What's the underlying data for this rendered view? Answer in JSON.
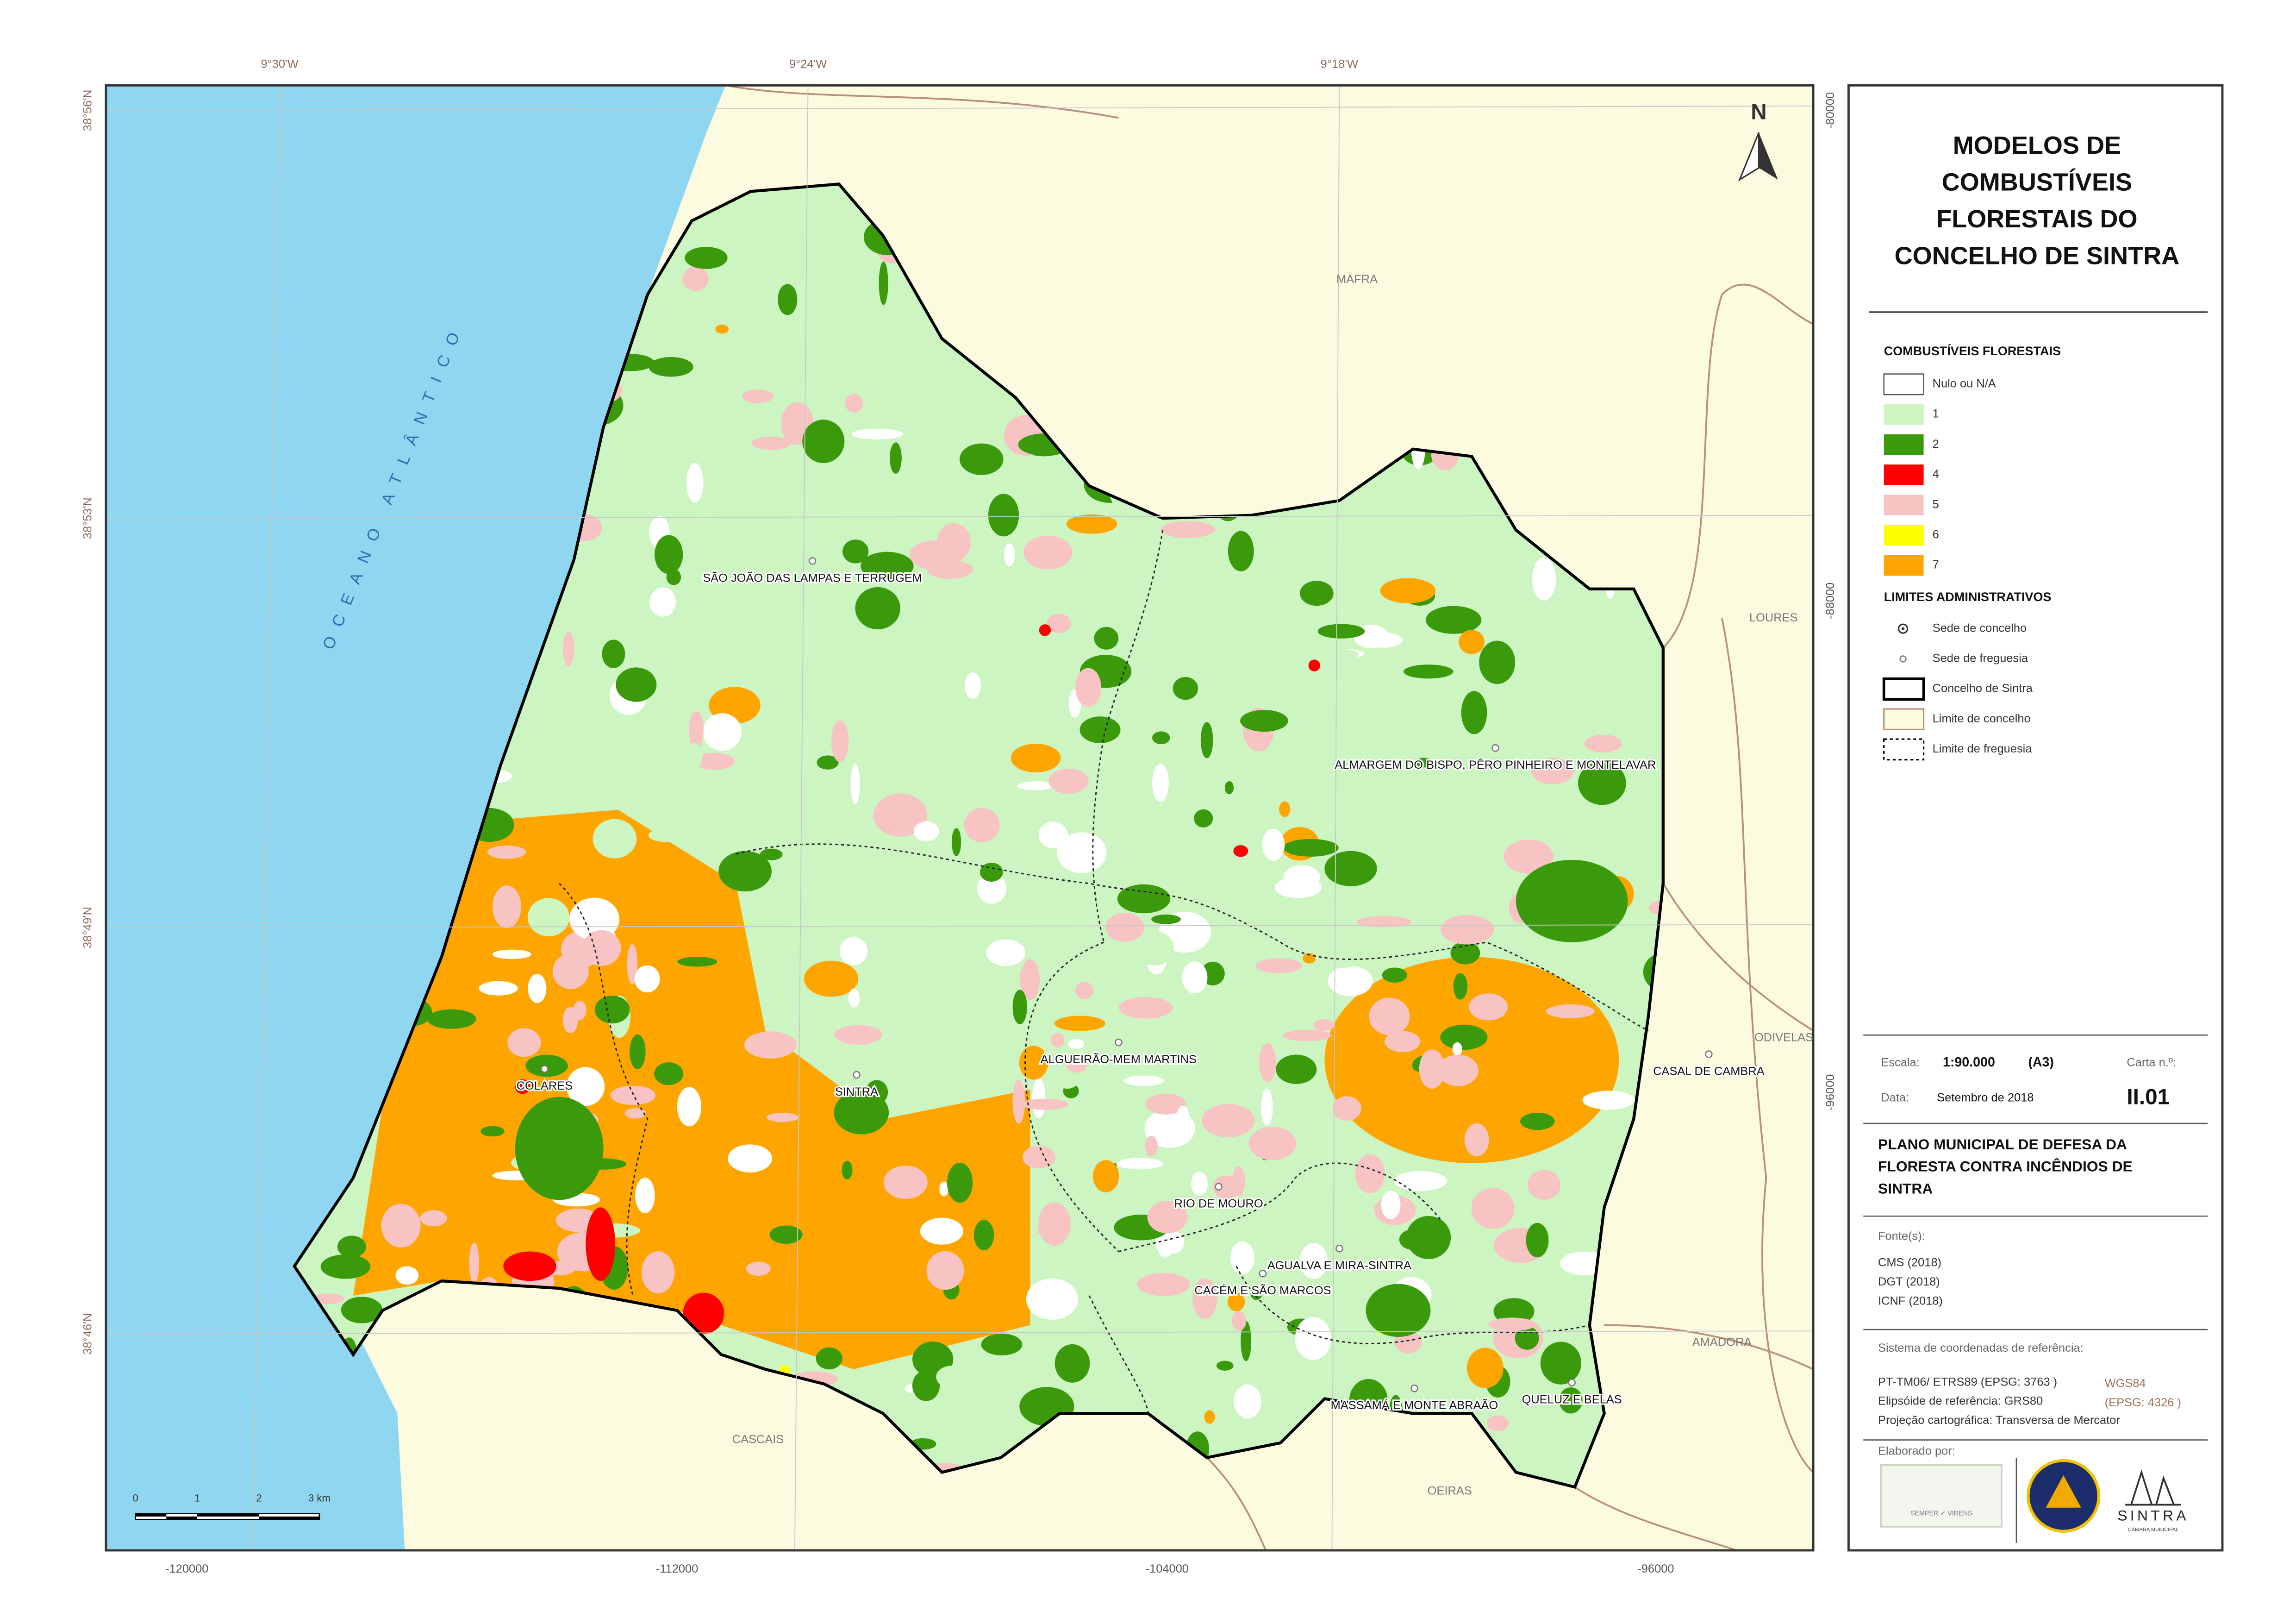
{
  "map": {
    "graticule_top": [
      "9°30'W",
      "9°24'W",
      "9°18'W"
    ],
    "graticule_left": [
      "38°56'N",
      "38°53'N",
      "38°49'N",
      "38°46'N"
    ],
    "grid_bottom": [
      "-120000",
      "-112000",
      "-104000",
      "-96000"
    ],
    "grid_right": [
      "-80000",
      "-88000",
      "-96000"
    ],
    "ocean": "OCEANO ATLÂNTICO",
    "neighbours": [
      "MAFRA",
      "LOURES",
      "ODIVELAS",
      "AMADORA",
      "OEIRAS",
      "CASCAIS"
    ],
    "parishes": [
      "SÃO JOÃO DAS LAMPAS E TERRUGEM",
      "ALMARGEM DO BISPO, PÊRO PINHEIRO E MONTELAVAR",
      "ALGUEIRÃO-MEM MARTINS",
      "SINTRA",
      "COLARES",
      "RIO DE MOURO",
      "AGUALVA E MIRA-SINTRA",
      "CACÉM E SÃO MARCOS",
      "MASSAMÁ E MONTE ABRAÃO",
      "QUELUZ E BELAS",
      "CASAL DE CAMBRA"
    ],
    "north": "N",
    "scale_bar": [
      "0",
      "1",
      "2",
      "3 km"
    ]
  },
  "legend": {
    "title_lines": [
      "MODELOS DE",
      "COMBUSTÍVEIS",
      "FLORESTAIS DO",
      "CONCELHO DE SINTRA"
    ],
    "fuel_heading": "COMBUSTÍVEIS FLORESTAIS",
    "fuel_items": [
      {
        "label": "Nulo ou N/A",
        "color": "#ffffff"
      },
      {
        "label": "1",
        "color": "#ccf5c2"
      },
      {
        "label": "2",
        "color": "#3a9a0c"
      },
      {
        "label": "4",
        "color": "#ff0000"
      },
      {
        "label": "5",
        "color": "#f8c3c3"
      },
      {
        "label": "6",
        "color": "#ffff00"
      },
      {
        "label": "7",
        "color": "#ffa500"
      }
    ],
    "admin_heading": "LIMITES ADMINISTRATIVOS",
    "admin_items": [
      "Sede de concelho",
      "Sede de freguesia",
      "Concelho de Sintra",
      "Limite de concelho",
      "Limite de freguesia"
    ]
  },
  "info": {
    "scale_label": "Escala:",
    "scale": "1:90.000",
    "paper": "(A3)",
    "sheet_label": "Carta n.º:",
    "date_label": "Data:",
    "date": "Setembro de 2018",
    "sheet": "II.01",
    "plan_lines": [
      "PLANO MUNICIPAL DE DEFESA DA",
      "FLORESTA CONTRA INCÊNDIOS DE",
      "SINTRA"
    ],
    "sources_label": "Fonte(s):",
    "sources": [
      "CMS (2018)",
      "DGT (2018)",
      "ICNF (2018)"
    ],
    "crs_label": "Sistema de coordenadas de referência:",
    "crs": "PT-TM06/ ETRS89 (EPSG: 3763 )",
    "ellipsoid": "Elipsóide de referência: GRS80",
    "projection": "Projeção cartográfica: Transversa de Mercator",
    "alt_crs": "WGS84",
    "alt_epsg": "(EPSG: 4326 )",
    "made_by": "Elaborado por:",
    "logo_text": "SEMPER ✓ VIRENS",
    "municipality": "SINTRA",
    "municipality_sub": "CÂMARA MUNICIPAL"
  }
}
